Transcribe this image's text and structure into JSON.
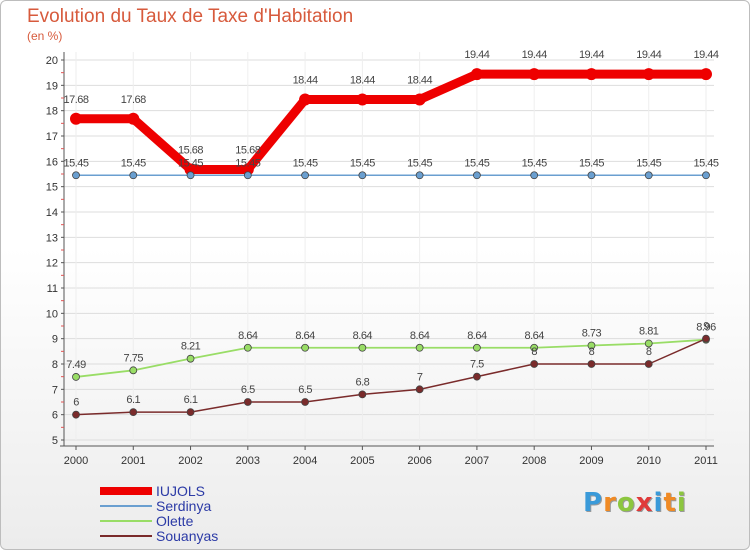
{
  "chart_data": {
    "type": "line",
    "title": "Evolution du Taux de Taxe d'Habitation",
    "unit_label": "(en %)",
    "x": [
      "2000",
      "2001",
      "2002",
      "2003",
      "2004",
      "2005",
      "2006",
      "2007",
      "2008",
      "2009",
      "2010",
      "2011"
    ],
    "ylim": [
      5,
      20
    ],
    "yticks": [
      5,
      6,
      7,
      8,
      9,
      10,
      11,
      12,
      13,
      14,
      15,
      16,
      17,
      18,
      19,
      20
    ],
    "series": [
      {
        "name": "IUJOLS",
        "color": "#ee0000",
        "values": [
          17.68,
          17.68,
          15.68,
          15.68,
          18.44,
          18.44,
          18.44,
          19.44,
          19.44,
          19.44,
          19.44,
          19.44
        ],
        "labels": [
          "17.68",
          "17.68",
          "15.68",
          "15.68",
          "18.44",
          "18.44",
          "18.44",
          "19.44",
          "19.44",
          "19.44",
          "19.44",
          "19.44"
        ]
      },
      {
        "name": "Serdinya",
        "color": "#6a9fd0",
        "values": [
          15.45,
          15.45,
          15.45,
          15.45,
          15.45,
          15.45,
          15.45,
          15.45,
          15.45,
          15.45,
          15.45,
          15.45
        ],
        "labels": [
          "15.45",
          "15.45",
          "15.45",
          "15.45",
          "15.45",
          "15.45",
          "15.45",
          "15.45",
          "15.45",
          "15.45",
          "15.45",
          "15.45"
        ]
      },
      {
        "name": "Olette",
        "color": "#99dd66",
        "values": [
          7.49,
          7.75,
          8.21,
          8.64,
          8.64,
          8.64,
          8.64,
          8.64,
          8.64,
          8.73,
          8.81,
          8.96
        ],
        "labels": [
          "7.49",
          "7.75",
          "8.21",
          "8.64",
          "8.64",
          "8.64",
          "8.64",
          "8.64",
          "8.64",
          "8.73",
          "8.81",
          "8.96"
        ]
      },
      {
        "name": "Souanyas",
        "color": "#7a2b2b",
        "values": [
          6,
          6.1,
          6.1,
          6.5,
          6.5,
          6.8,
          7,
          7.5,
          8,
          8,
          8,
          9
        ],
        "labels": [
          "6",
          "6.1",
          "6.1",
          "6.5",
          "6.5",
          "6.8",
          "7",
          "7.5",
          "8",
          "8",
          "8",
          "9"
        ]
      }
    ]
  },
  "logo": {
    "letters": [
      "P",
      "r",
      "o",
      "x",
      "i",
      "t",
      "i"
    ],
    "colors": [
      "#3a9ad9",
      "#f08a24",
      "#8cc63f",
      "#e03a3a",
      "#3a9ad9",
      "#f08a24",
      "#8cc63f"
    ]
  }
}
